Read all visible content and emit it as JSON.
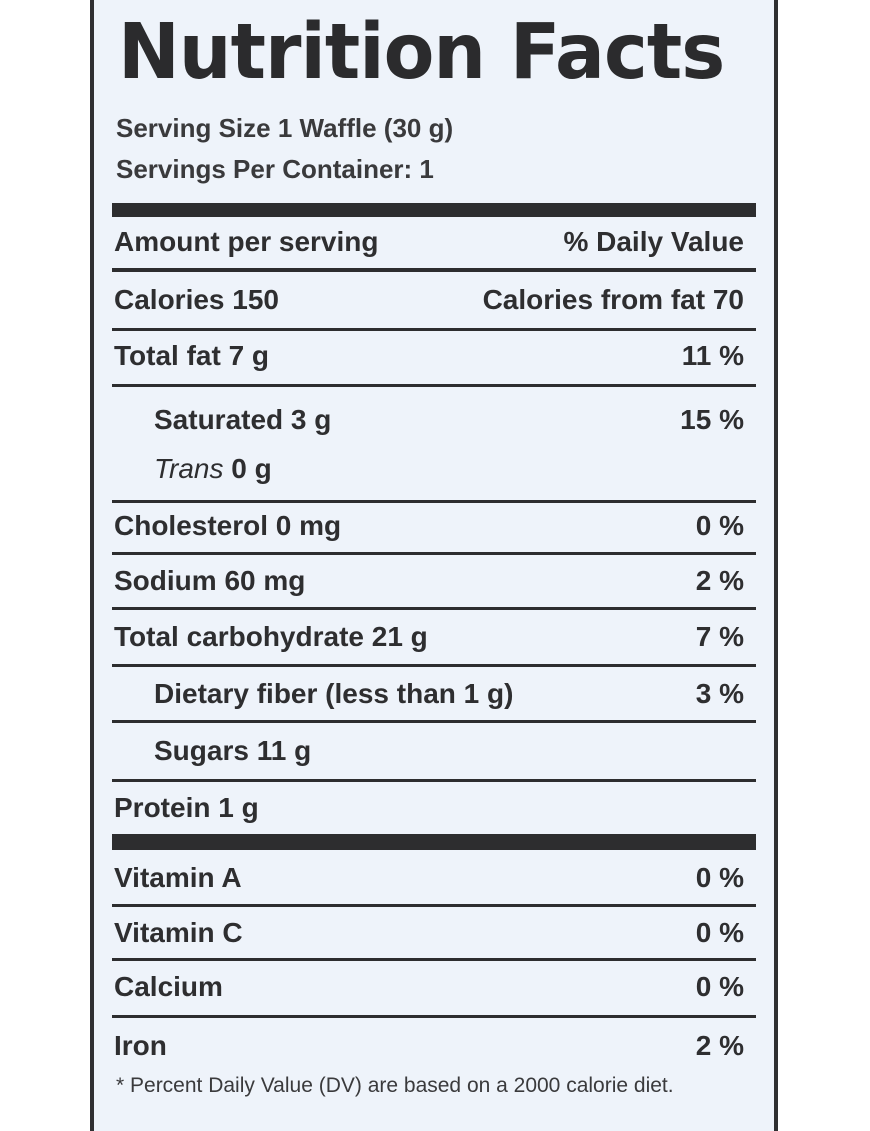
{
  "label": {
    "title": "Nutrition Facts",
    "serving_size": "Serving Size 1 Waffle (30 g)",
    "servings_per_container": "Servings Per Container: 1",
    "header": {
      "left": "Amount per serving",
      "right": "% Daily Value"
    },
    "calories": {
      "left": "Calories 150",
      "right": "Calories from fat 70"
    },
    "rows": [
      {
        "left": "Total fat 7 g",
        "right": "11 %"
      },
      {
        "left": "Saturated 3 g",
        "right": "15 %"
      },
      {
        "left_italic": "Trans",
        "left": " 0 g",
        "right": ""
      },
      {
        "left": "Cholesterol 0 mg",
        "right": "0 %"
      },
      {
        "left": "Sodium 60 mg",
        "right": "2 %"
      },
      {
        "left": "Total carbohydrate 21 g",
        "right": "7 %"
      },
      {
        "left": "Dietary fiber (less than 1 g)",
        "right": "3 %"
      },
      {
        "left": "Sugars 11 g",
        "right": ""
      },
      {
        "left": "Protein 1 g",
        "right": ""
      }
    ],
    "vitamins": [
      {
        "left": "Vitamin A",
        "right": "0 %"
      },
      {
        "left": "Vitamin C",
        "right": "0 %"
      },
      {
        "left": "Calcium",
        "right": "0 %"
      },
      {
        "left": "Iron",
        "right": "2 %"
      }
    ],
    "footnote": "* Percent Daily Value (DV) are based on a 2000 calorie diet."
  }
}
